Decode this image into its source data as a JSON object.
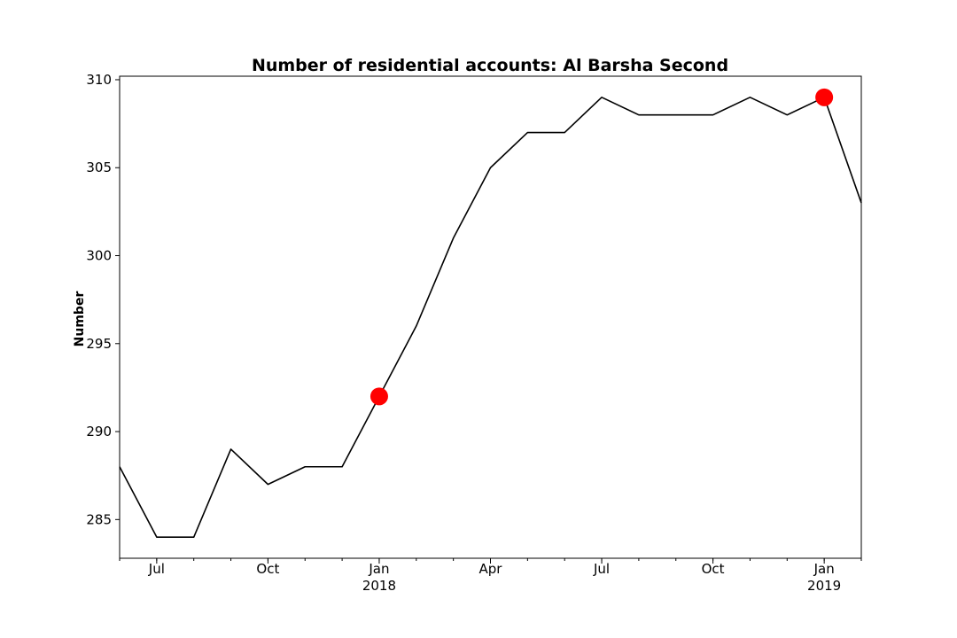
{
  "chart_data": {
    "type": "line",
    "title": "Number of residential accounts: Al Barsha Second",
    "xlabel": "",
    "ylabel": "Number",
    "x": [
      "2017-06",
      "2017-07",
      "2017-08",
      "2017-09",
      "2017-10",
      "2017-11",
      "2017-12",
      "2018-01",
      "2018-02",
      "2018-03",
      "2018-04",
      "2018-05",
      "2018-06",
      "2018-07",
      "2018-08",
      "2018-09",
      "2018-10",
      "2018-11",
      "2018-12",
      "2019-01",
      "2019-02"
    ],
    "series": [
      {
        "values": [
          288,
          284,
          284,
          289,
          287,
          288,
          288,
          292,
          296,
          301,
          305,
          307,
          307,
          309,
          308,
          308,
          308,
          309,
          308,
          309,
          303
        ]
      }
    ],
    "highlighted_points": [
      {
        "x": "2018-01",
        "y": 292
      },
      {
        "x": "2019-01",
        "y": 309
      }
    ],
    "xlim": [
      "2017-06",
      "2019-02"
    ],
    "ylim": [
      282.8,
      310.2
    ],
    "yticks": [
      285,
      290,
      295,
      300,
      305,
      310
    ],
    "xticks": [
      {
        "x": "2017-07",
        "label": "Jul",
        "sublabel": ""
      },
      {
        "x": "2017-10",
        "label": "Oct",
        "sublabel": ""
      },
      {
        "x": "2018-01",
        "label": "Jan",
        "sublabel": "2018"
      },
      {
        "x": "2018-04",
        "label": "Apr",
        "sublabel": ""
      },
      {
        "x": "2018-07",
        "label": "Jul",
        "sublabel": ""
      },
      {
        "x": "2018-10",
        "label": "Oct",
        "sublabel": ""
      },
      {
        "x": "2019-01",
        "label": "Jan",
        "sublabel": "2019"
      }
    ],
    "grid": false,
    "colors": {
      "line": "#000000",
      "highlight": "#ff0000"
    }
  }
}
